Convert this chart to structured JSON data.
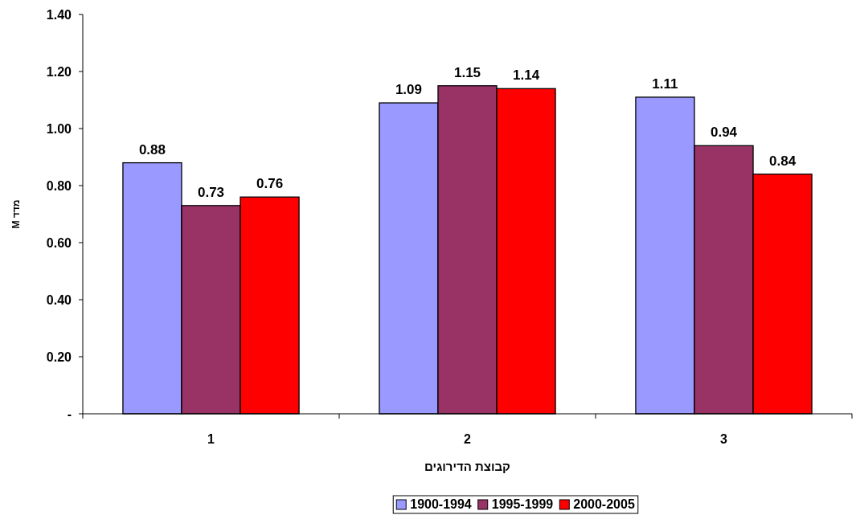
{
  "chart_data": {
    "type": "bar",
    "xlabel": "קבוצת הדירוגים",
    "ylabel": "מדד M",
    "categories": [
      "1",
      "2",
      "3"
    ],
    "series": [
      {
        "name": "1900-1994",
        "color": "#9999ff",
        "values": [
          0.88,
          1.09,
          1.11
        ]
      },
      {
        "name": "1995-1999",
        "color": "#993366",
        "values": [
          0.73,
          1.15,
          0.94
        ]
      },
      {
        "name": "2000-2005",
        "color": "#ff0000",
        "values": [
          0.76,
          1.14,
          0.84
        ]
      }
    ],
    "ylim": [
      0,
      1.4
    ],
    "yticks": [
      {
        "value": 0,
        "label": "-"
      },
      {
        "value": 0.2,
        "label": "0.20"
      },
      {
        "value": 0.4,
        "label": "0.40"
      },
      {
        "value": 0.6,
        "label": "0.60"
      },
      {
        "value": 0.8,
        "label": "0.80"
      },
      {
        "value": 1.0,
        "label": "1.00"
      },
      {
        "value": 1.2,
        "label": "1.20"
      },
      {
        "value": 1.4,
        "label": "1.40"
      }
    ],
    "data_labels": true,
    "legend": "bottom",
    "grid": false
  }
}
